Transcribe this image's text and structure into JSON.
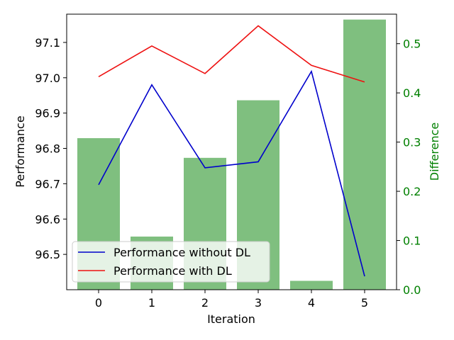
{
  "chart_data": {
    "type": "line",
    "title": "",
    "xlabel": "Iteration",
    "ylabel": "Performance",
    "y2label": "Difference",
    "x": [
      0,
      1,
      2,
      3,
      4,
      5
    ],
    "xlim": [
      -0.6,
      5.6
    ],
    "ylim": [
      96.4,
      97.18
    ],
    "y2lim": [
      0,
      0.56
    ],
    "xticks": [
      "0",
      "1",
      "2",
      "3",
      "4",
      "5"
    ],
    "yticks": [
      "96.5",
      "96.6",
      "96.7",
      "96.8",
      "96.9",
      "97.0",
      "97.1"
    ],
    "y2ticks": [
      "0.0",
      "0.1",
      "0.2",
      "0.3",
      "0.4",
      "0.5"
    ],
    "series": [
      {
        "name": "Performance without DL",
        "color": "#0000cc",
        "values": [
          96.697,
          96.98,
          96.745,
          96.762,
          97.018,
          96.438
        ]
      },
      {
        "name": "Performance with DL",
        "color": "#ee1111",
        "values": [
          97.003,
          97.09,
          97.012,
          97.147,
          97.035,
          96.988
        ]
      }
    ],
    "bars": {
      "name": "Difference",
      "color": "#7fbf7f",
      "axis": "y2",
      "values": [
        0.308,
        0.108,
        0.268,
        0.385,
        0.018,
        0.549
      ]
    },
    "y2_color": "#008000",
    "legend": "lower-left",
    "grid": false
  }
}
